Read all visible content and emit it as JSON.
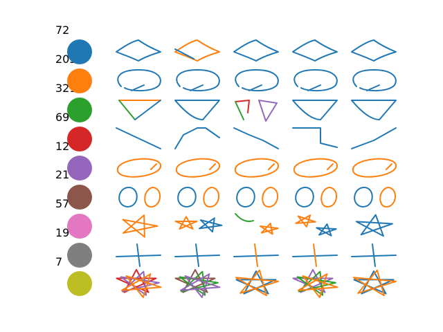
{
  "palette": [
    "#1f77b4",
    "#ff7f0e",
    "#2ca02c",
    "#d62728",
    "#9467bd",
    "#8c564b",
    "#e377c2",
    "#7f7f7f",
    "#bcbd22"
  ],
  "rows": [
    {
      "count": "72",
      "color": "#1f77b4",
      "shape": "rhombus"
    },
    {
      "count": "205",
      "color": "#ff7f0e",
      "shape": "ellipse"
    },
    {
      "count": "321",
      "color": "#2ca02c",
      "shape": "triangle"
    },
    {
      "count": "69",
      "color": "#d62728",
      "shape": "line"
    },
    {
      "count": "12",
      "color": "#9467bd",
      "shape": "oval"
    },
    {
      "count": "21",
      "color": "#8c564b",
      "shape": "double-circle"
    },
    {
      "count": "57",
      "color": "#e377c2",
      "shape": "star"
    },
    {
      "count": "19",
      "color": "#7f7f7f",
      "shape": "cross"
    },
    {
      "count": "7",
      "color": "#bcbd22",
      "shape": "filled-star"
    }
  ]
}
